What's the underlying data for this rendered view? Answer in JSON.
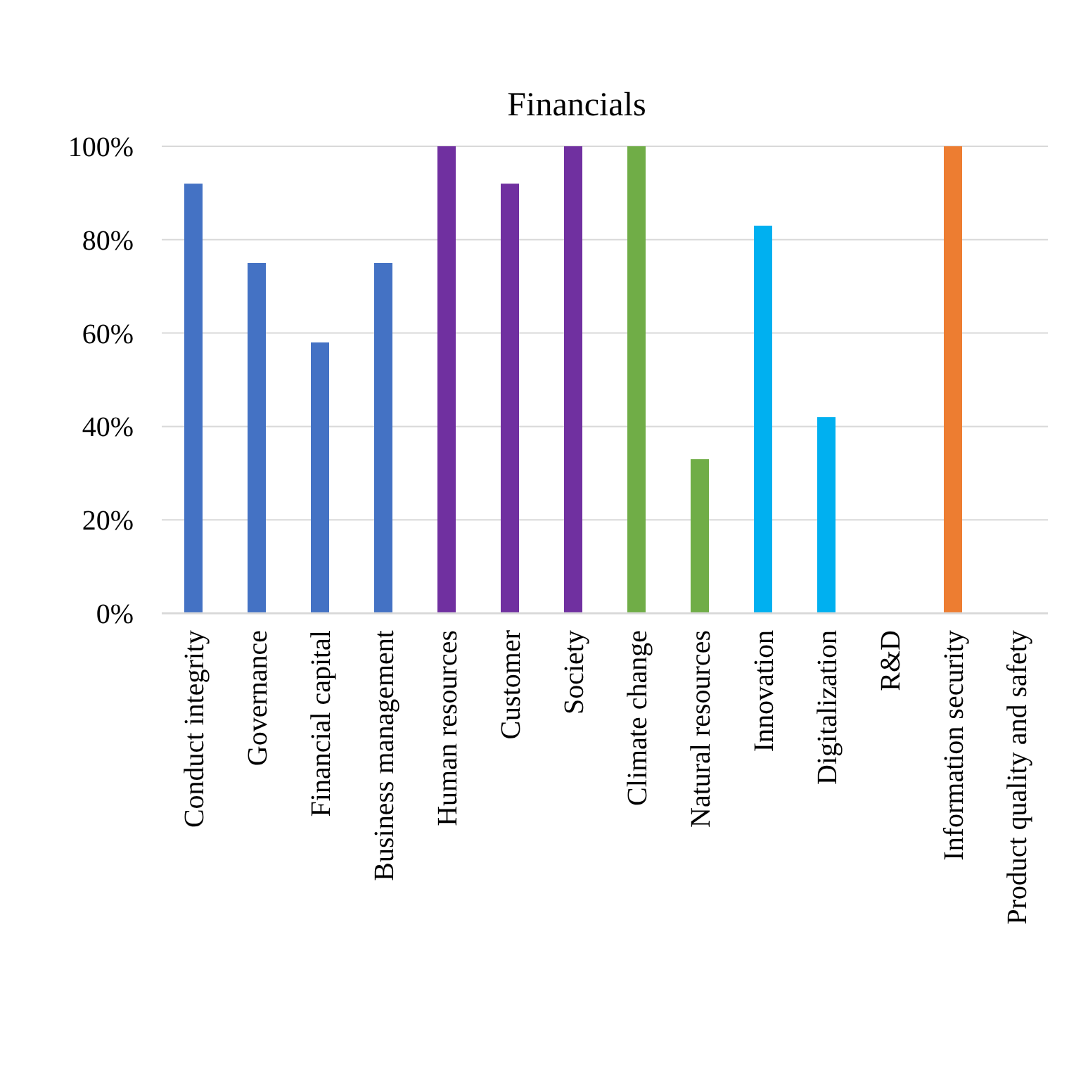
{
  "chart_data": {
    "type": "bar",
    "title": "Financials",
    "categories": [
      "Conduct integrity",
      "Governance",
      "Financial capital",
      "Business management",
      "Human resources",
      "Customer",
      "Society",
      "Climate change",
      "Natural resources",
      "Innovation",
      "Digitalization",
      "R&D",
      "Information security",
      "Product quality and safety"
    ],
    "values": [
      92,
      75,
      58,
      75,
      100,
      92,
      100,
      100,
      33,
      83,
      42,
      0,
      100,
      0
    ],
    "colors": [
      "#4472c4",
      "#4472c4",
      "#4472c4",
      "#4472c4",
      "#7030a0",
      "#7030a0",
      "#7030a0",
      "#70ad47",
      "#70ad47",
      "#00b0f0",
      "#00b0f0",
      "#00b0f0",
      "#ed7d31",
      "#ed7d31"
    ],
    "ylim": [
      0,
      100
    ],
    "yticks": [
      {
        "value": 0,
        "label": "0%"
      },
      {
        "value": 20,
        "label": "20%"
      },
      {
        "value": 40,
        "label": "40%"
      },
      {
        "value": 60,
        "label": "60%"
      },
      {
        "value": 80,
        "label": "80%"
      },
      {
        "value": 100,
        "label": "100%"
      }
    ],
    "grid": "y"
  }
}
